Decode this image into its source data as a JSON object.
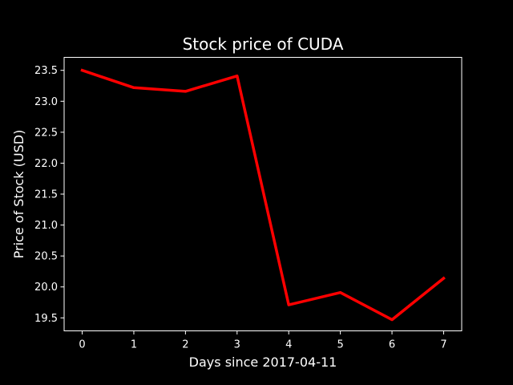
{
  "chart_data": {
    "type": "line",
    "title": "Stock price of CUDA",
    "xlabel": "Days since 2017-04-11",
    "ylabel": "Price of Stock (USD)",
    "x": [
      0,
      1,
      2,
      3,
      4,
      5,
      6,
      7
    ],
    "series": [
      {
        "values": [
          23.5,
          23.22,
          23.16,
          23.41,
          19.71,
          19.91,
          19.47,
          20.14
        ]
      }
    ],
    "xticks": [
      0,
      1,
      2,
      3,
      4,
      5,
      6,
      7
    ],
    "yticks": [
      "19.5",
      "20.0",
      "20.5",
      "21.0",
      "21.5",
      "22.0",
      "22.5",
      "23.0",
      "23.5"
    ],
    "xlim": [
      -0.35,
      7.35
    ],
    "ylim": [
      19.29,
      23.71
    ],
    "grid": false,
    "colors": {
      "background": "#000000",
      "foreground": "#ffffff",
      "line": "#ff0000"
    }
  }
}
